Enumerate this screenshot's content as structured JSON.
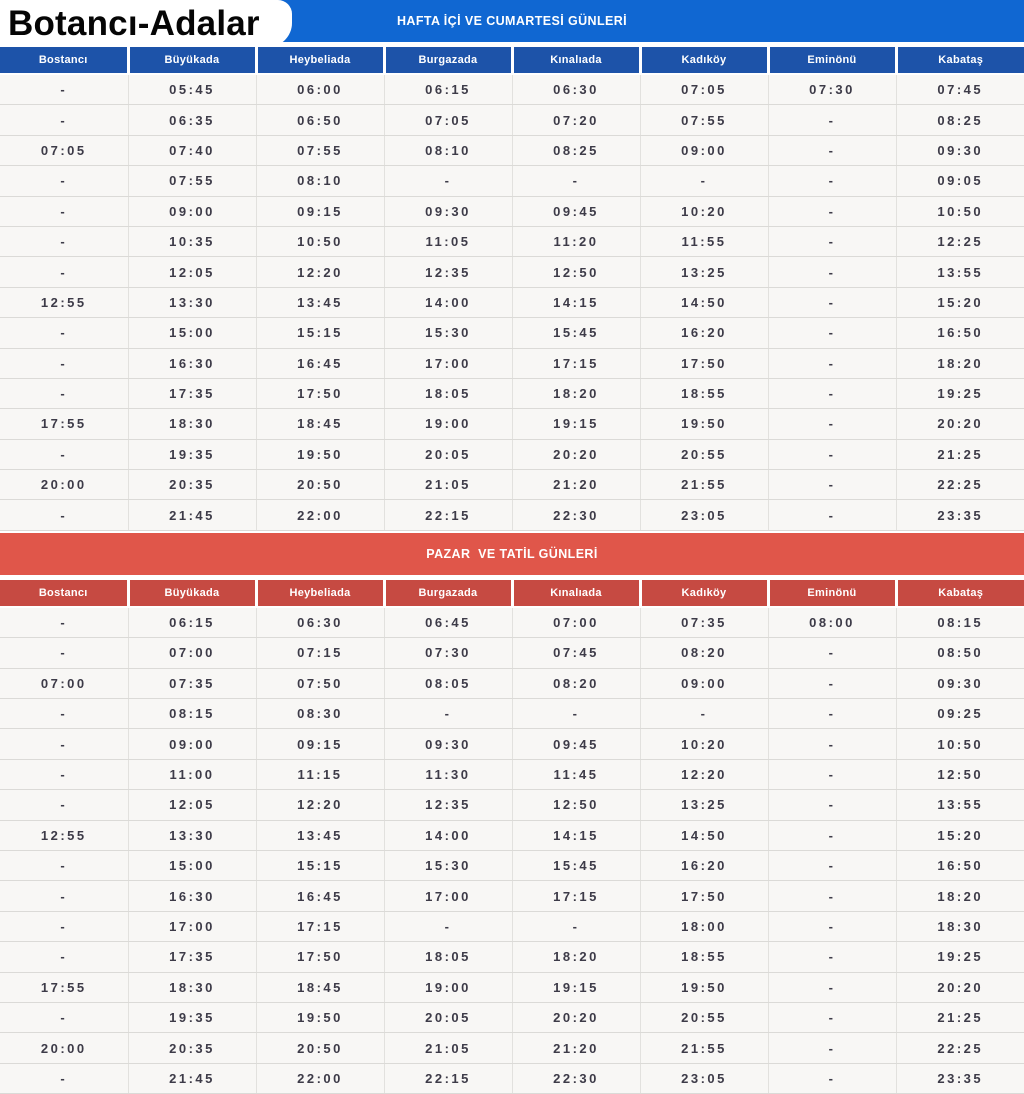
{
  "title": "Botancı-Adalar",
  "columns": [
    "Bostancı",
    "Büyükada",
    "Heybeliada",
    "Burgazada",
    "Kınalıada",
    "Kadıköy",
    "Eminönü",
    "Kabataş"
  ],
  "colors": {
    "weekday_banner_bg": "#1067d2",
    "weekday_header_bg": "#1d53a9",
    "holiday_banner_bg": "#e0564a",
    "holiday_header_bg": "#c64a42",
    "row_bg": "#f8f7f5",
    "cell_text": "#3d3b48",
    "header_text": "#ffffff"
  },
  "sections": [
    {
      "id": "weekday",
      "banner": "HAFTA İÇİ VE CUMARTESİ GÜNLERİ",
      "rows": [
        [
          "-",
          "05:45",
          "06:00",
          "06:15",
          "06:30",
          "07:05",
          "07:30",
          "07:45"
        ],
        [
          "-",
          "06:35",
          "06:50",
          "07:05",
          "07:20",
          "07:55",
          "-",
          "08:25"
        ],
        [
          "07:05",
          "07:40",
          "07:55",
          "08:10",
          "08:25",
          "09:00",
          "-",
          "09:30"
        ],
        [
          "-",
          "07:55",
          "08:10",
          "-",
          "-",
          "-",
          "-",
          "09:05"
        ],
        [
          "-",
          "09:00",
          "09:15",
          "09:30",
          "09:45",
          "10:20",
          "-",
          "10:50"
        ],
        [
          "-",
          "10:35",
          "10:50",
          "11:05",
          "11:20",
          "11:55",
          "-",
          "12:25"
        ],
        [
          "-",
          "12:05",
          "12:20",
          "12:35",
          "12:50",
          "13:25",
          "-",
          "13:55"
        ],
        [
          "12:55",
          "13:30",
          "13:45",
          "14:00",
          "14:15",
          "14:50",
          "-",
          "15:20"
        ],
        [
          "-",
          "15:00",
          "15:15",
          "15:30",
          "15:45",
          "16:20",
          "-",
          "16:50"
        ],
        [
          "-",
          "16:30",
          "16:45",
          "17:00",
          "17:15",
          "17:50",
          "-",
          "18:20"
        ],
        [
          "-",
          "17:35",
          "17:50",
          "18:05",
          "18:20",
          "18:55",
          "-",
          "19:25"
        ],
        [
          "17:55",
          "18:30",
          "18:45",
          "19:00",
          "19:15",
          "19:50",
          "-",
          "20:20"
        ],
        [
          "-",
          "19:35",
          "19:50",
          "20:05",
          "20:20",
          "20:55",
          "-",
          "21:25"
        ],
        [
          "20:00",
          "20:35",
          "20:50",
          "21:05",
          "21:20",
          "21:55",
          "-",
          "22:25"
        ],
        [
          "-",
          "21:45",
          "22:00",
          "22:15",
          "22:30",
          "23:05",
          "-",
          "23:35"
        ]
      ]
    },
    {
      "id": "holiday",
      "banner": "PAZAR  VE TATİL GÜNLERİ",
      "rows": [
        [
          "-",
          "06:15",
          "06:30",
          "06:45",
          "07:00",
          "07:35",
          "08:00",
          "08:15"
        ],
        [
          "-",
          "07:00",
          "07:15",
          "07:30",
          "07:45",
          "08:20",
          "-",
          "08:50"
        ],
        [
          "07:00",
          "07:35",
          "07:50",
          "08:05",
          "08:20",
          "09:00",
          "-",
          "09:30"
        ],
        [
          "-",
          "08:15",
          "08:30",
          "-",
          "-",
          "-",
          "-",
          "09:25"
        ],
        [
          "-",
          "09:00",
          "09:15",
          "09:30",
          "09:45",
          "10:20",
          "-",
          "10:50"
        ],
        [
          "-",
          "11:00",
          "11:15",
          "11:30",
          "11:45",
          "12:20",
          "-",
          "12:50"
        ],
        [
          "-",
          "12:05",
          "12:20",
          "12:35",
          "12:50",
          "13:25",
          "-",
          "13:55"
        ],
        [
          "12:55",
          "13:30",
          "13:45",
          "14:00",
          "14:15",
          "14:50",
          "-",
          "15:20"
        ],
        [
          "-",
          "15:00",
          "15:15",
          "15:30",
          "15:45",
          "16:20",
          "-",
          "16:50"
        ],
        [
          "-",
          "16:30",
          "16:45",
          "17:00",
          "17:15",
          "17:50",
          "-",
          "18:20"
        ],
        [
          "-",
          "17:00",
          "17:15",
          "-",
          "-",
          "18:00",
          "-",
          "18:30"
        ],
        [
          "-",
          "17:35",
          "17:50",
          "18:05",
          "18:20",
          "18:55",
          "-",
          "19:25"
        ],
        [
          "17:55",
          "18:30",
          "18:45",
          "19:00",
          "19:15",
          "19:50",
          "-",
          "20:20"
        ],
        [
          "-",
          "19:35",
          "19:50",
          "20:05",
          "20:20",
          "20:55",
          "-",
          "21:25"
        ],
        [
          "20:00",
          "20:35",
          "20:50",
          "21:05",
          "21:20",
          "21:55",
          "-",
          "22:25"
        ],
        [
          "-",
          "21:45",
          "22:00",
          "22:15",
          "22:30",
          "23:05",
          "-",
          "23:35"
        ]
      ]
    }
  ]
}
